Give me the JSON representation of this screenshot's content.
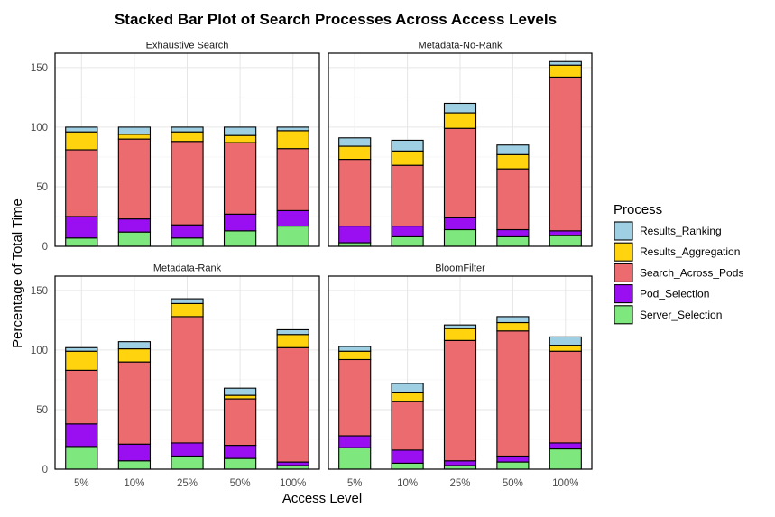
{
  "chart_data": {
    "type": "bar",
    "stacked": true,
    "title": "Stacked Bar Plot of Search Processes Across Access Levels",
    "xlabel": "Access Level",
    "ylabel": "Percentage of Total Time",
    "categories": [
      "5%",
      "10%",
      "25%",
      "50%",
      "100%"
    ],
    "ylim": [
      0,
      162
    ],
    "yticks": [
      0,
      50,
      100,
      150
    ],
    "grid": true,
    "legend": {
      "title": "Process",
      "placement": "right",
      "entries": [
        "Results_Ranking",
        "Results_Aggregation",
        "Search_Across_Pods",
        "Pod_Selection",
        "Server_Selection"
      ]
    },
    "colors": {
      "Server_Selection": "#7EE87E",
      "Pod_Selection": "#9A0EF2",
      "Search_Across_Pods": "#EC6B6E",
      "Results_Aggregation": "#FFD30E",
      "Results_Ranking": "#9ECFE2"
    },
    "stack_order": [
      "Server_Selection",
      "Pod_Selection",
      "Search_Across_Pods",
      "Results_Aggregation",
      "Results_Ranking"
    ],
    "panels": [
      {
        "name": "Exhaustive Search",
        "series": [
          {
            "name": "Server_Selection",
            "values": [
              7,
              12,
              7,
              13,
              17
            ]
          },
          {
            "name": "Pod_Selection",
            "values": [
              18,
              11,
              11,
              14,
              13
            ]
          },
          {
            "name": "Search_Across_Pods",
            "values": [
              56,
              67,
              70,
              60,
              52
            ]
          },
          {
            "name": "Results_Aggregation",
            "values": [
              15,
              4,
              8,
              6,
              15
            ]
          },
          {
            "name": "Results_Ranking",
            "values": [
              4,
              6,
              4,
              7,
              3
            ]
          }
        ]
      },
      {
        "name": "Metadata-No-Rank",
        "series": [
          {
            "name": "Server_Selection",
            "values": [
              3,
              8,
              14,
              8,
              9
            ]
          },
          {
            "name": "Pod_Selection",
            "values": [
              14,
              9,
              10,
              6,
              4
            ]
          },
          {
            "name": "Search_Across_Pods",
            "values": [
              56,
              51,
              75,
              51,
              129
            ]
          },
          {
            "name": "Results_Aggregation",
            "values": [
              11,
              12,
              13,
              12,
              10
            ]
          },
          {
            "name": "Results_Ranking",
            "values": [
              7,
              9,
              8,
              8,
              3
            ]
          }
        ]
      },
      {
        "name": "Metadata-Rank",
        "series": [
          {
            "name": "Server_Selection",
            "values": [
              19,
              7,
              11,
              9,
              3
            ]
          },
          {
            "name": "Pod_Selection",
            "values": [
              19,
              14,
              11,
              11,
              3
            ]
          },
          {
            "name": "Search_Across_Pods",
            "values": [
              45,
              69,
              106,
              39,
              96
            ]
          },
          {
            "name": "Results_Aggregation",
            "values": [
              16,
              11,
              11,
              3,
              11
            ]
          },
          {
            "name": "Results_Ranking",
            "values": [
              3,
              6,
              4,
              6,
              4
            ]
          }
        ]
      },
      {
        "name": "BloomFilter",
        "series": [
          {
            "name": "Server_Selection",
            "values": [
              18,
              5,
              3,
              6,
              17
            ]
          },
          {
            "name": "Pod_Selection",
            "values": [
              10,
              11,
              4,
              5,
              5
            ]
          },
          {
            "name": "Search_Across_Pods",
            "values": [
              64,
              41,
              101,
              105,
              77
            ]
          },
          {
            "name": "Results_Aggregation",
            "values": [
              7,
              7,
              10,
              7,
              5
            ]
          },
          {
            "name": "Results_Ranking",
            "values": [
              4,
              8,
              3,
              5,
              7
            ]
          }
        ]
      }
    ]
  }
}
